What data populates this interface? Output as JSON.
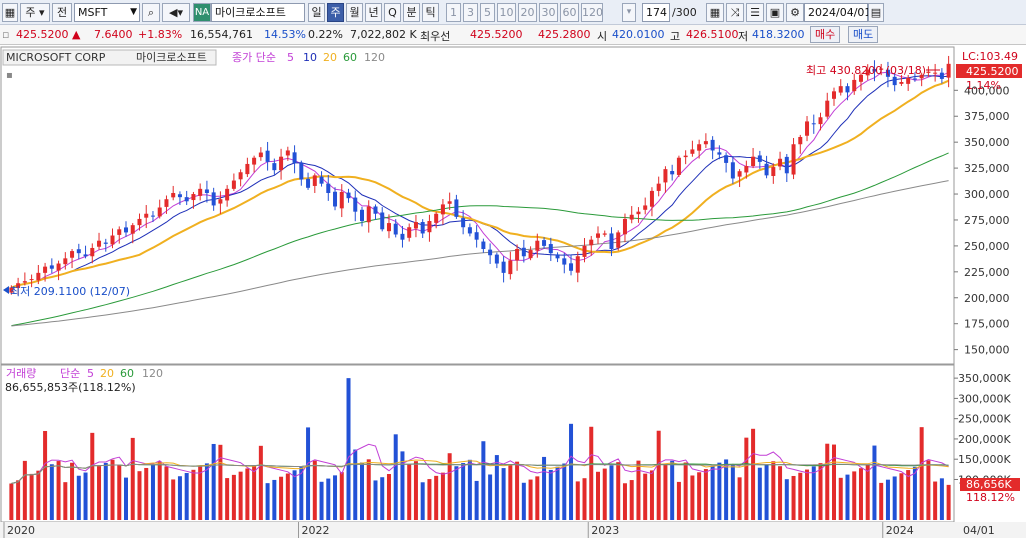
{
  "toolbar": {
    "type_label": "주",
    "market_label": "전",
    "symbol": "MSFT",
    "na_badge": "NA",
    "company": "마이크로소프트",
    "periods": [
      {
        "label": "일",
        "selected": false
      },
      {
        "label": "주",
        "selected": true
      },
      {
        "label": "월",
        "selected": false
      },
      {
        "label": "년",
        "selected": false
      },
      {
        "label": "Q",
        "selected": false
      },
      {
        "label": "분",
        "selected": false
      },
      {
        "label": "틱",
        "selected": false
      }
    ],
    "intervals": [
      "1",
      "3",
      "5",
      "10",
      "20",
      "30",
      "60",
      "120"
    ],
    "count": "174",
    "count_total": "/300",
    "date": "2024/04/01"
  },
  "quote": {
    "price": "425.5200",
    "arrow": "▲",
    "change": "7.6400",
    "change_pct": "+1.83%",
    "volume": "16,554,761",
    "volume_pct": "14.53%",
    "other_pct": "0.22%",
    "amount": "7,022,802 K",
    "best_label": "최우선",
    "ask": "425.5200",
    "bid": "425.2800",
    "open_label": "시",
    "open": "420.0100",
    "high_label": "고",
    "high": "426.5100",
    "low_label": "저",
    "low": "418.3200",
    "buy_label": "매수",
    "sell_label": "매도"
  },
  "price_panel": {
    "name": "MICROSOFT CORP",
    "name_kr": "마이크로소프트",
    "ma_label": "종가 단순",
    "ma_periods": [
      "5",
      "10",
      "20",
      "60",
      "120"
    ],
    "max_note": "최고 430.8200 (03/18)",
    "min_note": "최저 209.1100 (12/07)",
    "lc_label": "LC:103.49",
    "current_tag": "425.5200",
    "current_pct": "1.14%"
  },
  "volume_panel": {
    "label": "거래량",
    "ma_label": "단순",
    "ma_periods": [
      "5",
      "20",
      "60",
      "120"
    ],
    "summary": "86,655,853주(118.12%)",
    "current_tag": "86,656K",
    "current_pct": "118.12%"
  },
  "colors": {
    "up": "#e32b2b",
    "down": "#2251d6",
    "ma5": "#c23fd6",
    "ma10": "#1e2fb8",
    "ma20": "#f0b020",
    "ma60": "#2a9a3a",
    "ma120": "#8a8a8a"
  },
  "chart_data": [
    {
      "type": "candlestick",
      "title": "MICROSOFT CORP",
      "x_ticks": [
        "2020",
        "2022",
        "2023",
        "2024",
        "04/01"
      ],
      "y_ticks": [
        150000,
        175000,
        200000,
        225000,
        250000,
        275000,
        300000,
        325000,
        350000,
        375000,
        400000
      ],
      "ylim": [
        140,
        435
      ],
      "weekly_close": [
        210,
        214,
        216,
        218,
        224,
        230,
        228,
        233,
        238,
        245,
        243,
        240,
        248,
        255,
        252,
        260,
        266,
        263,
        270,
        276,
        281,
        279,
        287,
        295,
        301,
        297,
        293,
        300,
        305,
        301,
        289,
        295,
        305,
        313,
        321,
        329,
        335,
        340,
        331,
        323,
        336,
        342,
        330,
        314,
        306,
        318,
        310,
        301,
        288,
        302,
        296,
        283,
        274,
        288,
        281,
        266,
        272,
        261,
        256,
        268,
        273,
        262,
        274,
        281,
        290,
        293,
        278,
        268,
        262,
        256,
        247,
        241,
        233,
        224,
        236,
        247,
        240,
        246,
        255,
        250,
        243,
        238,
        232,
        226,
        240,
        250,
        256,
        262,
        262,
        247,
        263,
        276,
        280,
        283,
        289,
        303,
        310,
        324,
        319,
        335,
        337,
        343,
        348,
        351,
        342,
        338,
        330,
        315,
        322,
        327,
        336,
        331,
        318,
        326,
        334,
        320,
        348,
        355,
        370,
        368,
        374,
        390,
        399,
        404,
        398,
        410,
        415,
        420,
        418,
        421,
        413,
        405,
        408,
        412,
        411,
        415,
        418,
        417,
        411,
        425.52
      ],
      "max": {
        "value": 430.82,
        "date": "03/18"
      },
      "min": {
        "value": 209.11,
        "date": "12/07"
      }
    },
    {
      "type": "bar",
      "title": "거래량",
      "y_ticks": [
        "100,000K",
        "150,000K",
        "200,000K",
        "250,000K",
        "300,000K",
        "350,000K"
      ],
      "ylim": [
        0,
        375000
      ]
    }
  ]
}
